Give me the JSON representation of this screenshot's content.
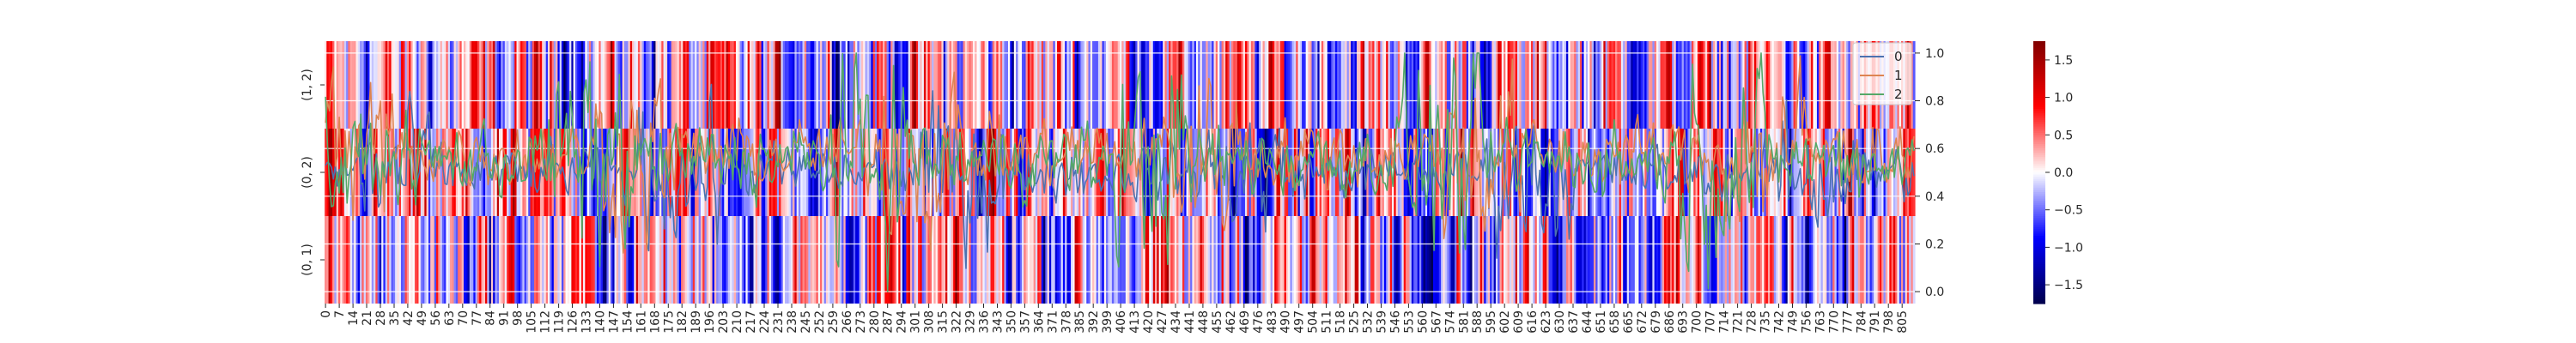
{
  "chart_data": {
    "type": "heatmap",
    "heatmap": {
      "rows": [
        "(1, 2)",
        "(0, 2)",
        "(0, 1)"
      ],
      "x_count": 812,
      "x_tick_step": 7,
      "colormap": "seismic",
      "vmin": -1.75,
      "vmax": 1.75,
      "colorbar_ticks": [
        "1.5",
        "1.0",
        "0.5",
        "0.0",
        "−0.5",
        "−1.0",
        "−1.5"
      ],
      "colorbar_tick_values": [
        1.5,
        1.0,
        0.5,
        0.0,
        -0.5,
        -1.0,
        -1.5
      ]
    },
    "line_overlay": {
      "type": "line",
      "ylim": [
        -0.05,
        1.05
      ],
      "y_ticks": [
        "0.0",
        "0.2",
        "0.4",
        "0.6",
        "0.8",
        "1.0"
      ],
      "y_tick_values": [
        0.0,
        0.2,
        0.4,
        0.6,
        0.8,
        1.0
      ],
      "series": [
        {
          "name": "0",
          "color": "#4c72b0",
          "mean": 0.5,
          "spread": 0.07
        },
        {
          "name": "1",
          "color": "#dd8452",
          "mean": 0.58,
          "spread": 0.09
        },
        {
          "name": "2",
          "color": "#55a868",
          "mean": 0.55,
          "spread": 0.1
        }
      ],
      "legend_position": "top-right"
    },
    "grid": true
  }
}
